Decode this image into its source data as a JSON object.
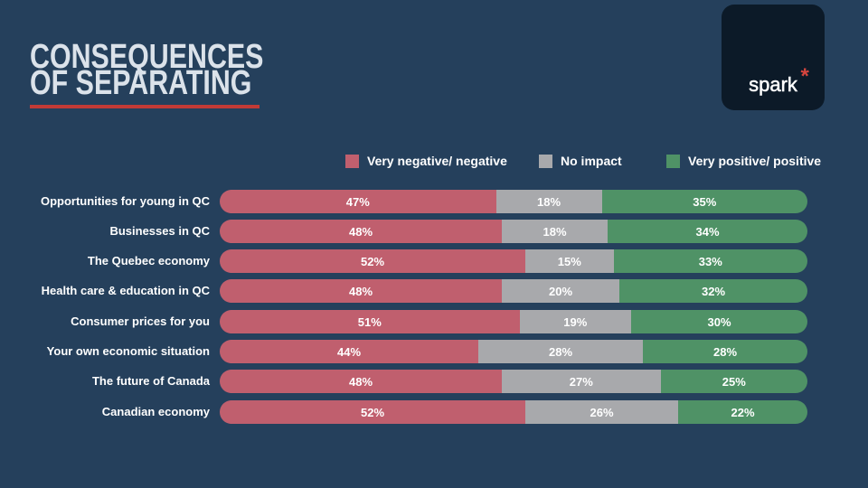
{
  "title": {
    "line1": "CONSEQUENCES",
    "line2": "OF SEPARATING"
  },
  "logo": {
    "text": "spark",
    "asterisk": "*"
  },
  "legend": [
    {
      "label": "Very negative/ negative",
      "color": "#c05f6e",
      "x": 382
    },
    {
      "label": "No impact",
      "color": "#a8a9ac",
      "x": 596
    },
    {
      "label": "Very positive/ positive",
      "color": "#4f9266",
      "x": 737
    }
  ],
  "chart_data": {
    "type": "bar",
    "stacked": true,
    "orientation": "horizontal",
    "unit": "%",
    "xlim": [
      0,
      100
    ],
    "categories": [
      "Opportunities for young in QC",
      "Businesses in QC",
      "The Quebec economy",
      "Health care & education in QC",
      "Consumer prices for you",
      "Your own economic situation",
      "The future of Canada",
      "Canadian economy"
    ],
    "series": [
      {
        "name": "Very negative/ negative",
        "color": "#c05f6e",
        "values": [
          47,
          48,
          52,
          48,
          51,
          44,
          48,
          52
        ]
      },
      {
        "name": "No impact",
        "color": "#a8a9ac",
        "values": [
          18,
          18,
          15,
          20,
          19,
          28,
          27,
          26
        ]
      },
      {
        "name": "Very positive/ positive",
        "color": "#4f9266",
        "values": [
          35,
          34,
          33,
          32,
          30,
          28,
          25,
          22
        ]
      }
    ]
  },
  "colors": {
    "background": "#25405c",
    "title_text": "#dbe2ea",
    "accent_line": "#c23a36",
    "logo_background": "#0c1a28",
    "value_text": "#ffffff"
  }
}
